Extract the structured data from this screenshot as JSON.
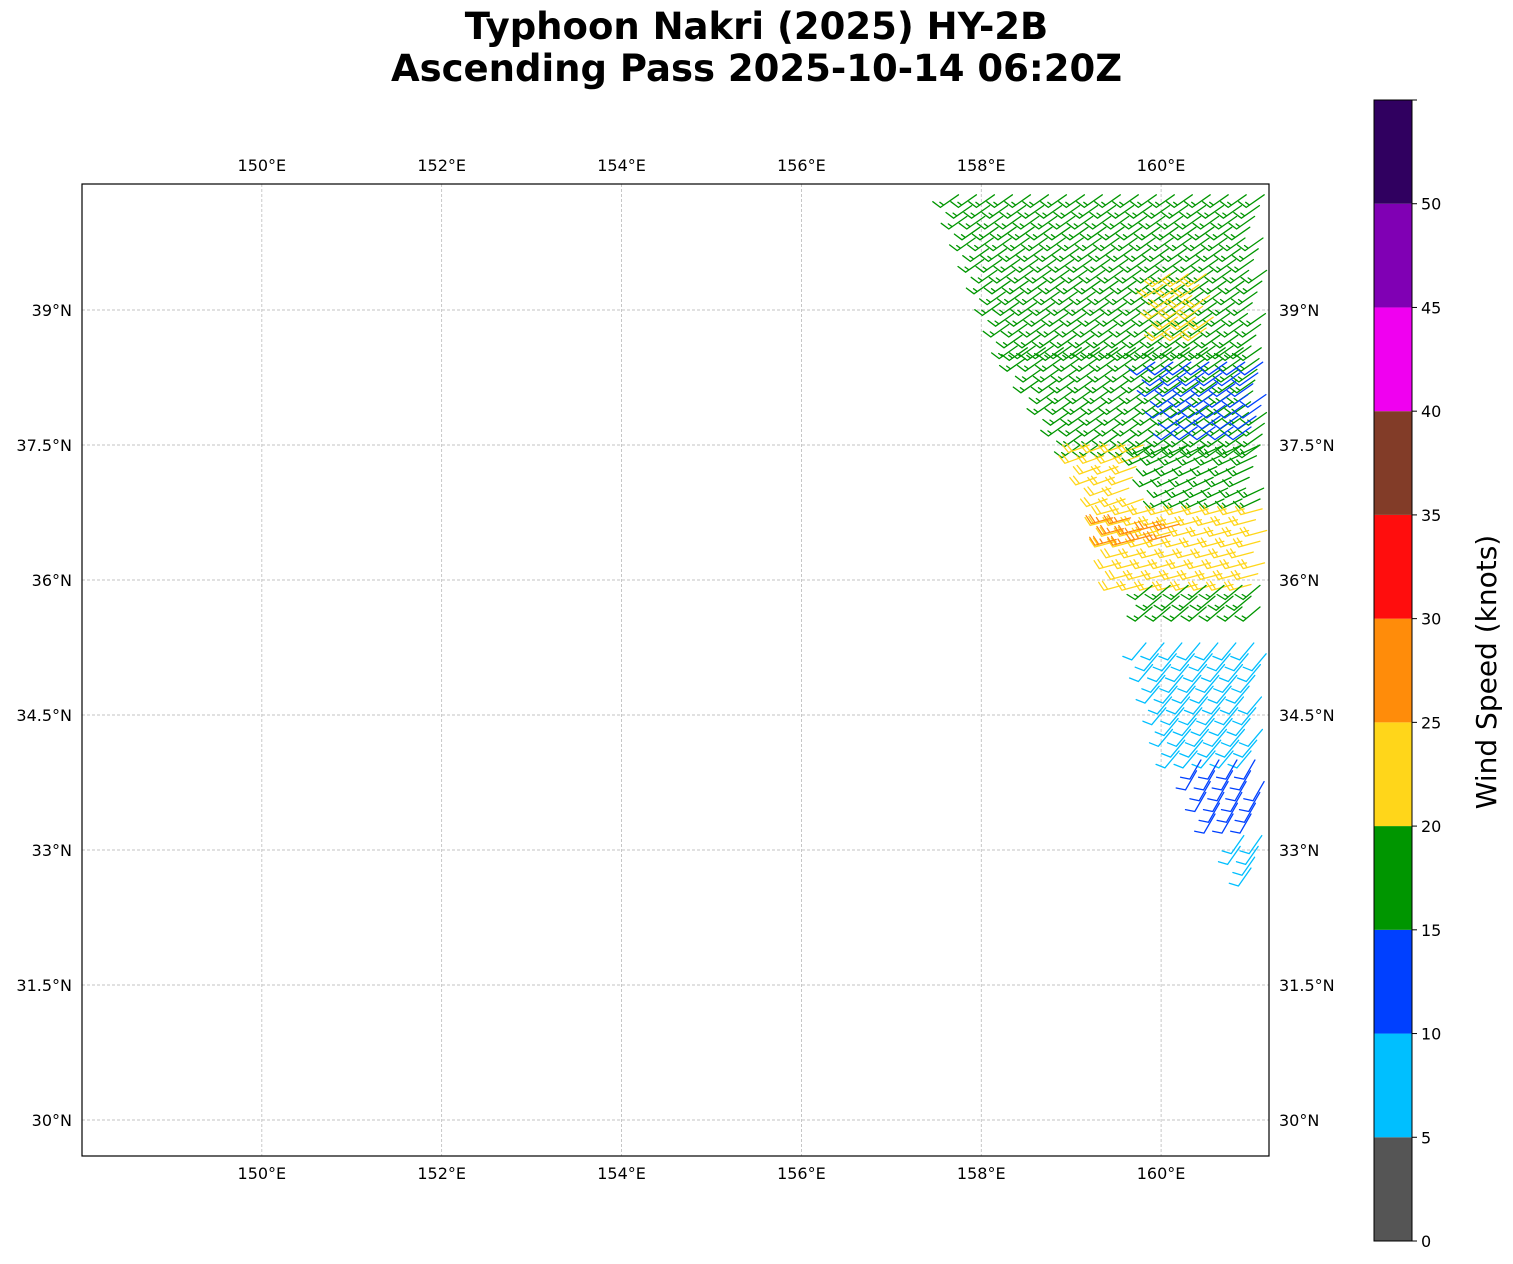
{
  "title": {
    "line1": "Typhoon Nakri (2025) HY-2B",
    "line2": "Ascending Pass 2025-10-14 06:20Z"
  },
  "map": {
    "lon_range": [
      148,
      161.2
    ],
    "lat_range": [
      29.6,
      40.4
    ],
    "lon_ticks": [
      150,
      152,
      154,
      156,
      158,
      160
    ],
    "lat_ticks": [
      30,
      31.5,
      33,
      34.5,
      36,
      37.5,
      39
    ],
    "lon_tick_labels": [
      "150°E",
      "152°E",
      "154°E",
      "156°E",
      "158°E",
      "160°E"
    ],
    "lat_tick_labels": [
      "30°N",
      "31.5°N",
      "33°N",
      "34.5°N",
      "36°N",
      "37.5°N",
      "39°N"
    ],
    "gridlines": true
  },
  "colorbar": {
    "title": "Wind Speed (knots)",
    "bins": [
      {
        "from": 0,
        "to": 5,
        "color": "#555555"
      },
      {
        "from": 5,
        "to": 10,
        "color": "#00bfff"
      },
      {
        "from": 10,
        "to": 15,
        "color": "#0040ff"
      },
      {
        "from": 15,
        "to": 20,
        "color": "#009600"
      },
      {
        "from": 20,
        "to": 25,
        "color": "#ffd61a"
      },
      {
        "from": 25,
        "to": 30,
        "color": "#ff8c0a"
      },
      {
        "from": 30,
        "to": 35,
        "color": "#ff0d0d"
      },
      {
        "from": 35,
        "to": 40,
        "color": "#823c28"
      },
      {
        "from": 40,
        "to": 45,
        "color": "#f000f0"
      },
      {
        "from": 45,
        "to": 50,
        "color": "#8000b4"
      },
      {
        "from": 50,
        "to": 55,
        "color": "#300060"
      }
    ],
    "tick_labels": [
      "0",
      "5",
      "10",
      "15",
      "20",
      "25",
      "30",
      "35",
      "40",
      "45",
      "50"
    ]
  },
  "chart_data": {
    "type": "wind-barbs",
    "units": "knots",
    "swath_regions": [
      {
        "lat_range": [
          38.6,
          40.4
        ],
        "lon_west": [
          157.7,
          158.4
        ],
        "lon_east": 161.2,
        "speed": 17,
        "direction_deg": 235
      },
      {
        "lat_range": [
          38.8,
          39.4
        ],
        "lon_west": [
          160.0,
          160.1
        ],
        "lon_east": 160.6,
        "speed": 22,
        "direction_deg": 235
      },
      {
        "lat_range": [
          37.5,
          38.6
        ],
        "lon_west": [
          158.4,
          159.1
        ],
        "lon_east": 161.2,
        "speed": 17,
        "direction_deg": 235
      },
      {
        "lat_range": [
          37.7,
          38.5
        ],
        "lon_west": [
          159.9,
          160.2
        ],
        "lon_east": 161.2,
        "speed": 12,
        "direction_deg": 235
      },
      {
        "lat_range": [
          36.9,
          37.5
        ],
        "lon_west": [
          159.1,
          159.4
        ],
        "lon_east": 159.8,
        "speed": 22,
        "direction_deg": 250
      },
      {
        "lat_range": [
          36.9,
          37.5
        ],
        "lon_west": [
          159.8,
          160.1
        ],
        "lon_east": 161.2,
        "speed": 17,
        "direction_deg": 245
      },
      {
        "lat_range": [
          35.95,
          36.9
        ],
        "lon_west": [
          159.4,
          159.6
        ],
        "lon_east": 161.2,
        "speed": 22,
        "direction_deg": 255
      },
      {
        "lat_range": [
          36.45,
          36.75
        ],
        "lon_west": [
          159.45,
          159.5
        ],
        "lon_east": 159.8,
        "speed": 26,
        "direction_deg": 255
      },
      {
        "lat_range": [
          36.5,
          36.7
        ],
        "lon_west": [
          159.9,
          159.9
        ],
        "lon_east": 160.2,
        "speed": 26,
        "direction_deg": 255
      },
      {
        "lat_range": [
          35.7,
          35.95
        ],
        "lon_west": [
          159.9,
          159.9
        ],
        "lon_east": 161.2,
        "speed": 16,
        "direction_deg": 230
      },
      {
        "lat_range": [
          34.1,
          35.4
        ],
        "lon_west": [
          159.8,
          160.2
        ],
        "lon_east": 161.2,
        "speed": 8,
        "direction_deg": 220
      },
      {
        "lat_range": [
          33.4,
          34.1
        ],
        "lon_west": [
          160.3,
          160.6
        ],
        "lon_east": 161.2,
        "speed": 12,
        "direction_deg": 210
      },
      {
        "lat_range": [
          32.8,
          33.2
        ],
        "lon_west": [
          160.8,
          161.0
        ],
        "lon_east": 161.2,
        "speed": 9,
        "direction_deg": 215
      }
    ]
  }
}
